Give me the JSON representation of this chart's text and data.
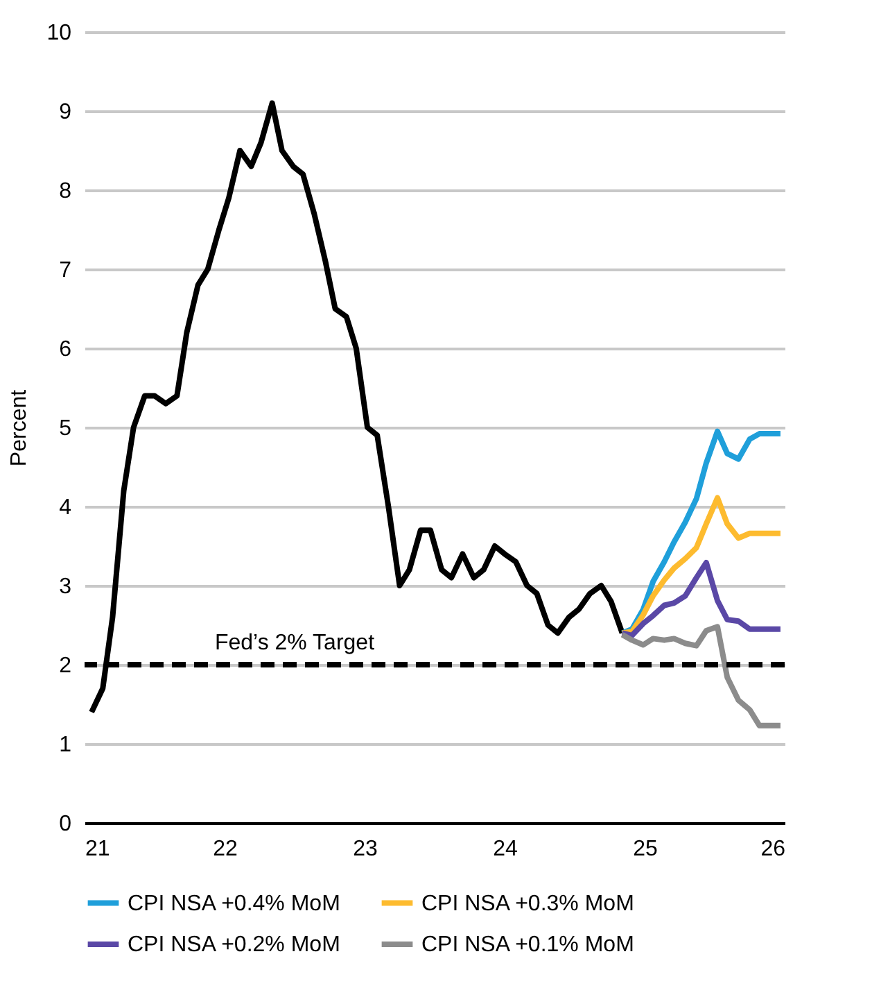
{
  "chart_data": {
    "type": "line",
    "ylabel": "Percent",
    "xlim": [
      21,
      26
    ],
    "xticks": [
      21,
      22,
      23,
      24,
      25,
      26
    ],
    "ylim": [
      0,
      10
    ],
    "yticks": [
      0,
      1,
      2,
      3,
      4,
      5,
      6,
      7,
      8,
      9,
      10
    ],
    "grid": "y",
    "legend": "bottom",
    "line_style": "solid",
    "marker": "none",
    "series": [
      {
        "color": "#000000",
        "x": [
          21.05,
          21.13,
          21.2,
          21.28,
          21.35,
          21.43,
          21.5,
          21.58,
          21.66,
          21.73,
          21.81,
          21.88,
          21.96,
          22.03,
          22.11,
          22.19,
          22.26,
          22.34,
          22.41,
          22.49,
          22.56,
          22.64,
          22.72,
          22.79,
          22.87,
          22.94,
          23.02,
          23.09,
          23.17,
          23.25,
          23.32,
          23.4,
          23.47,
          23.55,
          23.62,
          23.7,
          23.78,
          23.85,
          23.93,
          24,
          24.08,
          24.16,
          24.23,
          24.31,
          24.38,
          24.46,
          24.53,
          24.61,
          24.69,
          24.76,
          24.84
        ],
        "values": [
          1.4,
          1.7,
          2.6,
          4.2,
          5.0,
          5.4,
          5.4,
          5.3,
          5.4,
          6.2,
          6.8,
          7.0,
          7.5,
          7.9,
          8.5,
          8.3,
          8.6,
          9.1,
          8.5,
          8.3,
          8.2,
          7.7,
          7.1,
          6.5,
          6.4,
          6.0,
          5.0,
          4.9,
          4.0,
          3.0,
          3.2,
          3.7,
          3.7,
          3.2,
          3.1,
          3.4,
          3.1,
          3.2,
          3.5,
          3.4,
          3.3,
          3.0,
          2.9,
          2.5,
          2.4,
          2.6,
          2.7,
          2.9,
          3.0,
          2.8,
          2.4
        ]
      },
      {
        "name": "CPI NSA +0.4% MoM",
        "color": "#1f9fda",
        "x": [
          24.84,
          24.91,
          24.99,
          25.06,
          25.14,
          25.21,
          25.29,
          25.37,
          25.44,
          25.52,
          25.59,
          25.67,
          25.75,
          25.82,
          25.9,
          25.97
        ],
        "values": [
          2.4,
          2.45,
          2.7,
          3.05,
          3.3,
          3.55,
          3.8,
          4.1,
          4.55,
          4.95,
          4.67,
          4.6,
          4.85,
          4.92,
          4.92,
          4.92
        ]
      },
      {
        "name": "CPI NSA +0.3% MoM",
        "color": "#fdbb2f",
        "x": [
          24.84,
          24.91,
          24.99,
          25.06,
          25.14,
          25.21,
          25.29,
          25.37,
          25.44,
          25.52,
          25.59,
          25.67,
          25.75,
          25.82,
          25.9,
          25.97
        ],
        "values": [
          2.4,
          2.42,
          2.63,
          2.87,
          3.07,
          3.22,
          3.34,
          3.48,
          3.78,
          4.11,
          3.78,
          3.6,
          3.66,
          3.66,
          3.66,
          3.66
        ]
      },
      {
        "name": "CPI NSA +0.2% MoM",
        "color": "#5a48a6",
        "x": [
          24.84,
          24.91,
          24.99,
          25.06,
          25.14,
          25.21,
          25.29,
          25.37,
          25.44,
          25.52,
          25.59,
          25.67,
          25.75,
          25.82,
          25.9,
          25.97
        ],
        "values": [
          2.4,
          2.37,
          2.52,
          2.62,
          2.75,
          2.78,
          2.87,
          3.1,
          3.29,
          2.81,
          2.57,
          2.55,
          2.45,
          2.45,
          2.45,
          2.45
        ]
      },
      {
        "name": "CPI NSA +0.1% MoM",
        "color": "#8c8c8c",
        "x": [
          24.84,
          24.91,
          24.99,
          25.06,
          25.14,
          25.21,
          25.29,
          25.37,
          25.44,
          25.52,
          25.59,
          25.67,
          25.75,
          25.82,
          25.9,
          25.97
        ],
        "values": [
          2.38,
          2.31,
          2.25,
          2.33,
          2.31,
          2.33,
          2.27,
          2.24,
          2.43,
          2.48,
          1.84,
          1.55,
          1.43,
          1.23,
          1.23,
          1.23
        ]
      }
    ],
    "ref_lines": [
      {
        "axis": "y",
        "value": 2,
        "label": "Fed’s 2% Target",
        "color": "#000000",
        "line_style": "dashed"
      }
    ]
  }
}
